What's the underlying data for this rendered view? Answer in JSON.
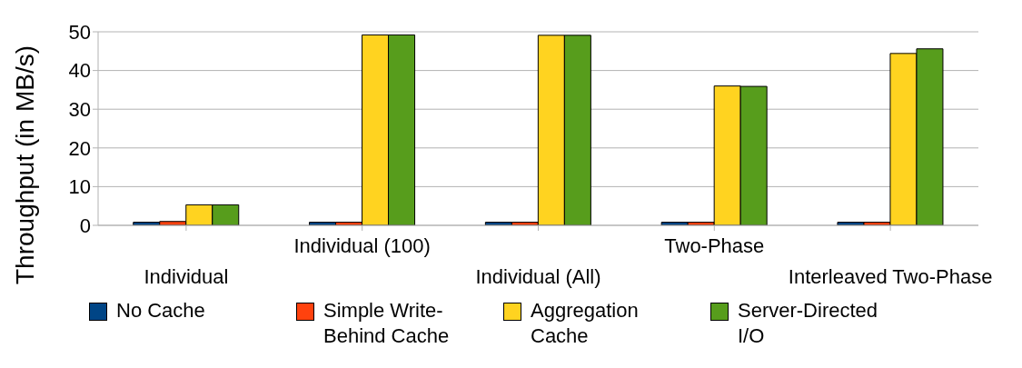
{
  "chart_data": {
    "type": "bar",
    "ylabel": "Throughput (in MB/s)",
    "categories": [
      "Individual",
      "Individual (100)",
      "Individual (All)",
      "Two-Phase",
      "Interleaved Two-Phase"
    ],
    "series": [
      {
        "name": "No Cache",
        "color": "#004586",
        "values": [
          0.8,
          0.8,
          0.8,
          0.8,
          0.8
        ]
      },
      {
        "name": "Simple Write-Behind Cache",
        "color": "#ff420e",
        "values": [
          1.0,
          0.8,
          0.8,
          0.8,
          0.8
        ]
      },
      {
        "name": "Aggregation Cache",
        "color": "#ffd320",
        "values": [
          5.3,
          49.2,
          49.1,
          36.0,
          44.4
        ]
      },
      {
        "name": "Server-Directed I/O",
        "color": "#579d1c",
        "values": [
          5.3,
          49.2,
          49.1,
          35.9,
          45.6
        ]
      }
    ],
    "ylim": [
      0,
      50
    ],
    "yticks": [
      0,
      10,
      20,
      30,
      40,
      50
    ],
    "grid": "y",
    "legend": "bottom"
  }
}
